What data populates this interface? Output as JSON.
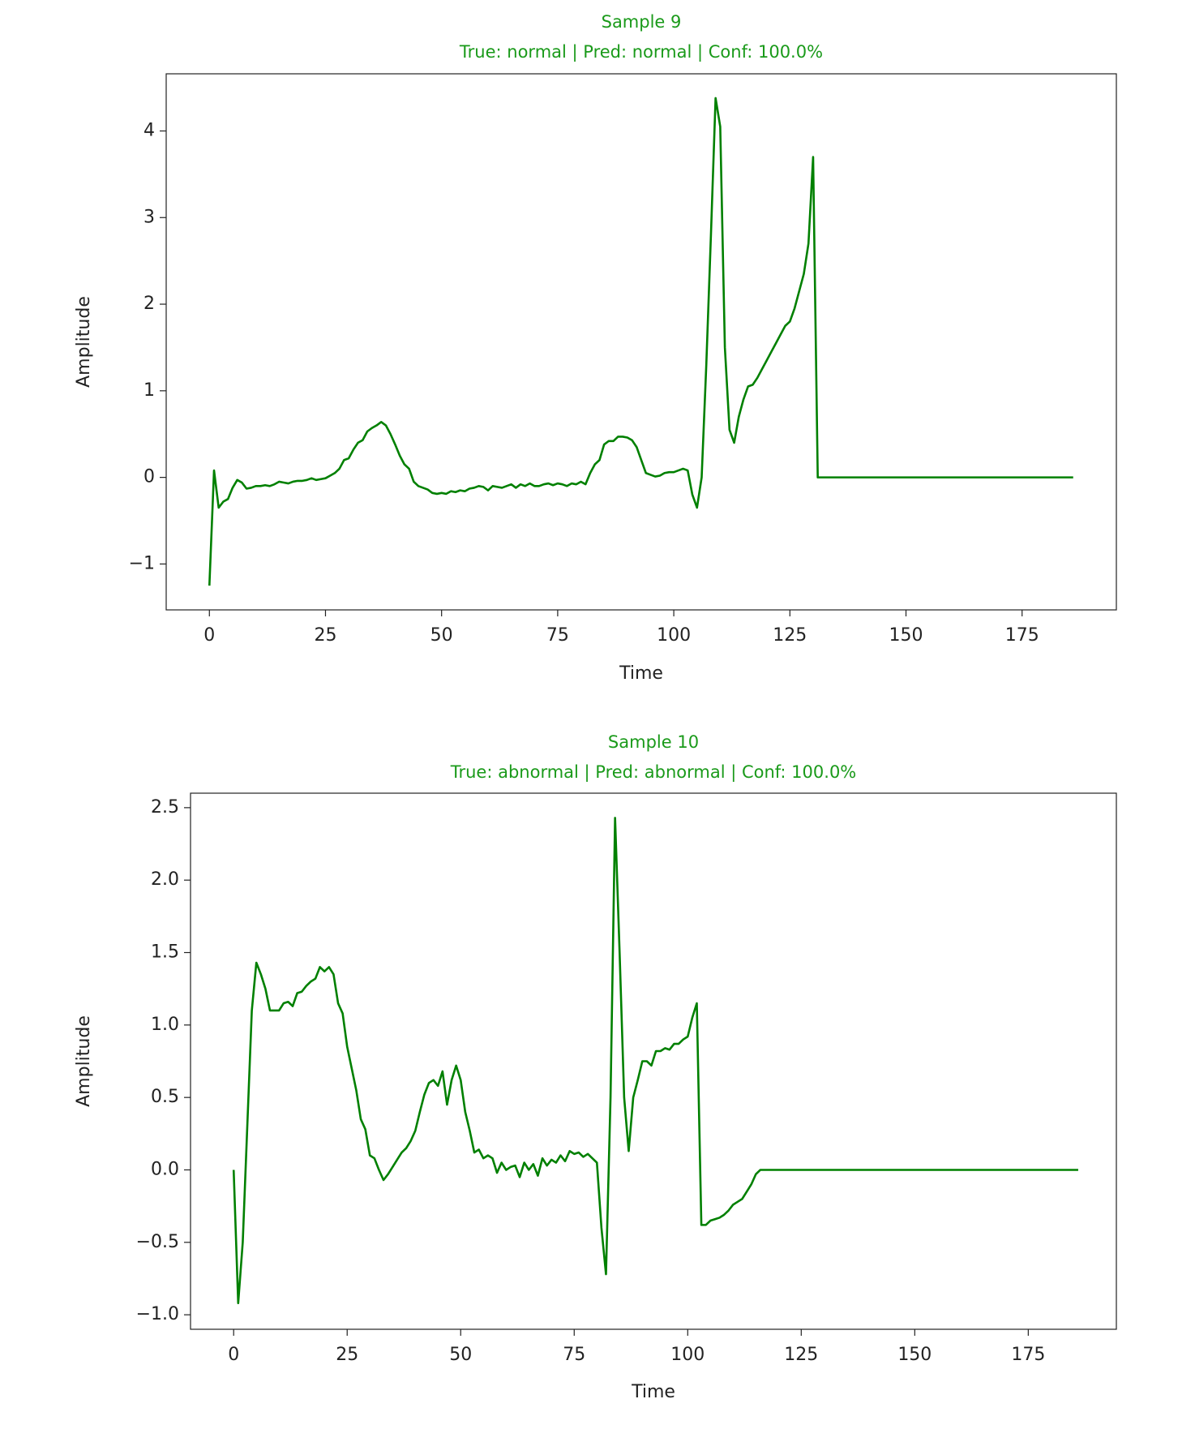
{
  "chart_data": [
    {
      "type": "line",
      "title": "Sample 9",
      "subtitle": "True: normal | Pred: normal | Conf: 100.0%",
      "title_color": "#1a9a1a",
      "x_label": "Time",
      "y_label": "Amplitude",
      "xlim": [
        -9.3,
        195.3
      ],
      "ylim": [
        -1.53,
        4.66
      ],
      "xticks": [
        0,
        25,
        50,
        75,
        100,
        125,
        150,
        175
      ],
      "yticks": [
        {
          "value": -1,
          "label": "−1"
        },
        0,
        1,
        2,
        3,
        4
      ],
      "x": [
        0,
        1,
        2,
        3,
        4,
        5,
        6,
        7,
        8,
        9,
        10,
        11,
        12,
        13,
        14,
        15,
        16,
        17,
        18,
        19,
        20,
        21,
        22,
        23,
        24,
        25,
        26,
        27,
        28,
        29,
        30,
        31,
        32,
        33,
        34,
        35,
        36,
        37,
        38,
        39,
        40,
        41,
        42,
        43,
        44,
        45,
        46,
        47,
        48,
        49,
        50,
        51,
        52,
        53,
        54,
        55,
        56,
        57,
        58,
        59,
        60,
        61,
        62,
        63,
        64,
        65,
        66,
        67,
        68,
        69,
        70,
        71,
        72,
        73,
        74,
        75,
        76,
        77,
        78,
        79,
        80,
        81,
        82,
        83,
        84,
        85,
        86,
        87,
        88,
        89,
        90,
        91,
        92,
        93,
        94,
        95,
        96,
        97,
        98,
        99,
        100,
        101,
        102,
        103,
        104,
        105,
        106,
        107,
        108,
        109,
        110,
        111,
        112,
        113,
        114,
        115,
        116,
        117,
        118,
        119,
        120,
        121,
        122,
        123,
        124,
        125,
        126,
        127,
        128,
        129,
        130,
        131,
        132,
        133,
        134,
        135,
        136,
        137,
        138,
        139,
        140,
        141,
        142,
        143,
        144,
        145,
        146,
        147,
        148,
        149,
        150,
        151,
        152,
        153,
        154,
        155,
        156,
        157,
        158,
        159,
        160,
        161,
        162,
        163,
        164,
        165,
        166,
        167,
        168,
        169,
        170,
        171,
        172,
        173,
        174,
        175,
        176,
        177,
        178,
        179,
        180,
        181,
        182,
        183,
        184,
        185,
        186
      ],
      "series": [
        {
          "color": "#008000",
          "values": [
            -1.25,
            0.08,
            -0.35,
            -0.28,
            -0.25,
            -0.12,
            -0.03,
            -0.06,
            -0.13,
            -0.12,
            -0.1,
            -0.1,
            -0.09,
            -0.1,
            -0.08,
            -0.05,
            -0.06,
            -0.07,
            -0.05,
            -0.04,
            -0.04,
            -0.03,
            -0.01,
            -0.03,
            -0.02,
            -0.01,
            0.02,
            0.05,
            0.1,
            0.2,
            0.22,
            0.32,
            0.4,
            0.43,
            0.53,
            0.57,
            0.6,
            0.64,
            0.6,
            0.5,
            0.38,
            0.25,
            0.15,
            0.1,
            -0.05,
            -0.1,
            -0.12,
            -0.14,
            -0.18,
            -0.19,
            -0.18,
            -0.19,
            -0.16,
            -0.17,
            -0.15,
            -0.16,
            -0.13,
            -0.12,
            -0.1,
            -0.11,
            -0.15,
            -0.1,
            -0.11,
            -0.12,
            -0.1,
            -0.08,
            -0.12,
            -0.08,
            -0.1,
            -0.07,
            -0.1,
            -0.1,
            -0.08,
            -0.07,
            -0.09,
            -0.07,
            -0.08,
            -0.1,
            -0.07,
            -0.08,
            -0.05,
            -0.08,
            0.05,
            0.15,
            0.2,
            0.38,
            0.42,
            0.42,
            0.47,
            0.47,
            0.46,
            0.43,
            0.35,
            0.2,
            0.05,
            0.03,
            0.01,
            0.02,
            0.05,
            0.06,
            0.06,
            0.08,
            0.1,
            0.08,
            -0.2,
            -0.35,
            0.0,
            1.3,
            2.8,
            4.38,
            4.05,
            1.5,
            0.55,
            0.4,
            0.7,
            0.9,
            1.05,
            1.07,
            1.15,
            1.25,
            1.35,
            1.45,
            1.55,
            1.65,
            1.75,
            1.8,
            1.95,
            2.15,
            2.35,
            2.7,
            3.7,
            0,
            0,
            0,
            0,
            0,
            0,
            0,
            0,
            0,
            0,
            0,
            0,
            0,
            0,
            0,
            0,
            0,
            0,
            0,
            0,
            0,
            0,
            0,
            0,
            0,
            0,
            0,
            0,
            0,
            0,
            0,
            0,
            0,
            0,
            0,
            0,
            0,
            0,
            0,
            0,
            0,
            0,
            0,
            0,
            0,
            0,
            0,
            0,
            0,
            0,
            0,
            0,
            0,
            0,
            0,
            0
          ]
        }
      ]
    },
    {
      "type": "line",
      "title": "Sample 10",
      "subtitle": "True: abnormal | Pred: abnormal | Conf: 100.0%",
      "title_color": "#1a9a1a",
      "x_label": "Time",
      "y_label": "Amplitude",
      "xlim": [
        -9.5,
        194.4
      ],
      "ylim": [
        -1.1,
        2.6
      ],
      "xticks": [
        0,
        25,
        50,
        75,
        100,
        125,
        150,
        175
      ],
      "yticks": [
        {
          "value": -1,
          "label": "−1.0"
        },
        {
          "value": -0.5,
          "label": "−0.5"
        },
        {
          "value": 0,
          "label": "0.0"
        },
        0.5,
        {
          "value": 1,
          "label": "1.0"
        },
        1.5,
        {
          "value": 2,
          "label": "2.0"
        },
        2.5
      ],
      "x": [
        0,
        1,
        2,
        3,
        4,
        5,
        6,
        7,
        8,
        9,
        10,
        11,
        12,
        13,
        14,
        15,
        16,
        17,
        18,
        19,
        20,
        21,
        22,
        23,
        24,
        25,
        26,
        27,
        28,
        29,
        30,
        31,
        32,
        33,
        34,
        35,
        36,
        37,
        38,
        39,
        40,
        41,
        42,
        43,
        44,
        45,
        46,
        47,
        48,
        49,
        50,
        51,
        52,
        53,
        54,
        55,
        56,
        57,
        58,
        59,
        60,
        61,
        62,
        63,
        64,
        65,
        66,
        67,
        68,
        69,
        70,
        71,
        72,
        73,
        74,
        75,
        76,
        77,
        78,
        79,
        80,
        81,
        82,
        83,
        84,
        85,
        86,
        87,
        88,
        89,
        90,
        91,
        92,
        93,
        94,
        95,
        96,
        97,
        98,
        99,
        100,
        101,
        102,
        103,
        104,
        105,
        106,
        107,
        108,
        109,
        110,
        111,
        112,
        113,
        114,
        115,
        116,
        117,
        118,
        119,
        120,
        121,
        122,
        123,
        124,
        125,
        126,
        127,
        128,
        129,
        130,
        131,
        132,
        133,
        134,
        135,
        136,
        137,
        138,
        139,
        140,
        141,
        142,
        143,
        144,
        145,
        146,
        147,
        148,
        149,
        150,
        151,
        152,
        153,
        154,
        155,
        156,
        157,
        158,
        159,
        160,
        161,
        162,
        163,
        164,
        165,
        166,
        167,
        168,
        169,
        170,
        171,
        172,
        173,
        174,
        175,
        176,
        177,
        178,
        179,
        180,
        181,
        182,
        183,
        184,
        185,
        186
      ],
      "series": [
        {
          "color": "#008000",
          "values": [
            0.0,
            -0.92,
            -0.5,
            0.3,
            1.1,
            1.43,
            1.35,
            1.25,
            1.1,
            1.1,
            1.1,
            1.15,
            1.16,
            1.13,
            1.22,
            1.23,
            1.27,
            1.3,
            1.32,
            1.4,
            1.37,
            1.4,
            1.35,
            1.15,
            1.08,
            0.85,
            0.7,
            0.55,
            0.35,
            0.28,
            0.1,
            0.08,
            0.0,
            -0.07,
            -0.03,
            0.02,
            0.07,
            0.12,
            0.15,
            0.2,
            0.27,
            0.4,
            0.52,
            0.6,
            0.62,
            0.58,
            0.68,
            0.45,
            0.62,
            0.72,
            0.62,
            0.4,
            0.27,
            0.12,
            0.14,
            0.08,
            0.1,
            0.08,
            -0.02,
            0.05,
            0.0,
            0.02,
            0.03,
            -0.05,
            0.05,
            0.0,
            0.04,
            -0.04,
            0.08,
            0.03,
            0.07,
            0.05,
            0.1,
            0.06,
            0.13,
            0.11,
            0.12,
            0.09,
            0.11,
            0.08,
            0.05,
            -0.4,
            -0.72,
            0.5,
            2.43,
            1.5,
            0.5,
            0.13,
            0.5,
            0.62,
            0.75,
            0.75,
            0.72,
            0.82,
            0.82,
            0.84,
            0.83,
            0.87,
            0.87,
            0.9,
            0.92,
            1.05,
            1.15,
            -0.38,
            -0.38,
            -0.35,
            -0.34,
            -0.33,
            -0.31,
            -0.28,
            -0.24,
            -0.22,
            -0.2,
            -0.15,
            -0.1,
            -0.03,
            0.0,
            0,
            0,
            0,
            0,
            0,
            0,
            0,
            0,
            0,
            0,
            0,
            0,
            0,
            0,
            0,
            0,
            0,
            0,
            0,
            0,
            0,
            0,
            0,
            0,
            0,
            0,
            0,
            0,
            0,
            0,
            0,
            0,
            0,
            0,
            0,
            0,
            0,
            0,
            0,
            0,
            0,
            0,
            0,
            0,
            0,
            0,
            0,
            0,
            0,
            0,
            0,
            0,
            0,
            0,
            0,
            0,
            0,
            0,
            0,
            0,
            0,
            0,
            0,
            0,
            0,
            0,
            0,
            0,
            0,
            0
          ]
        }
      ]
    }
  ]
}
